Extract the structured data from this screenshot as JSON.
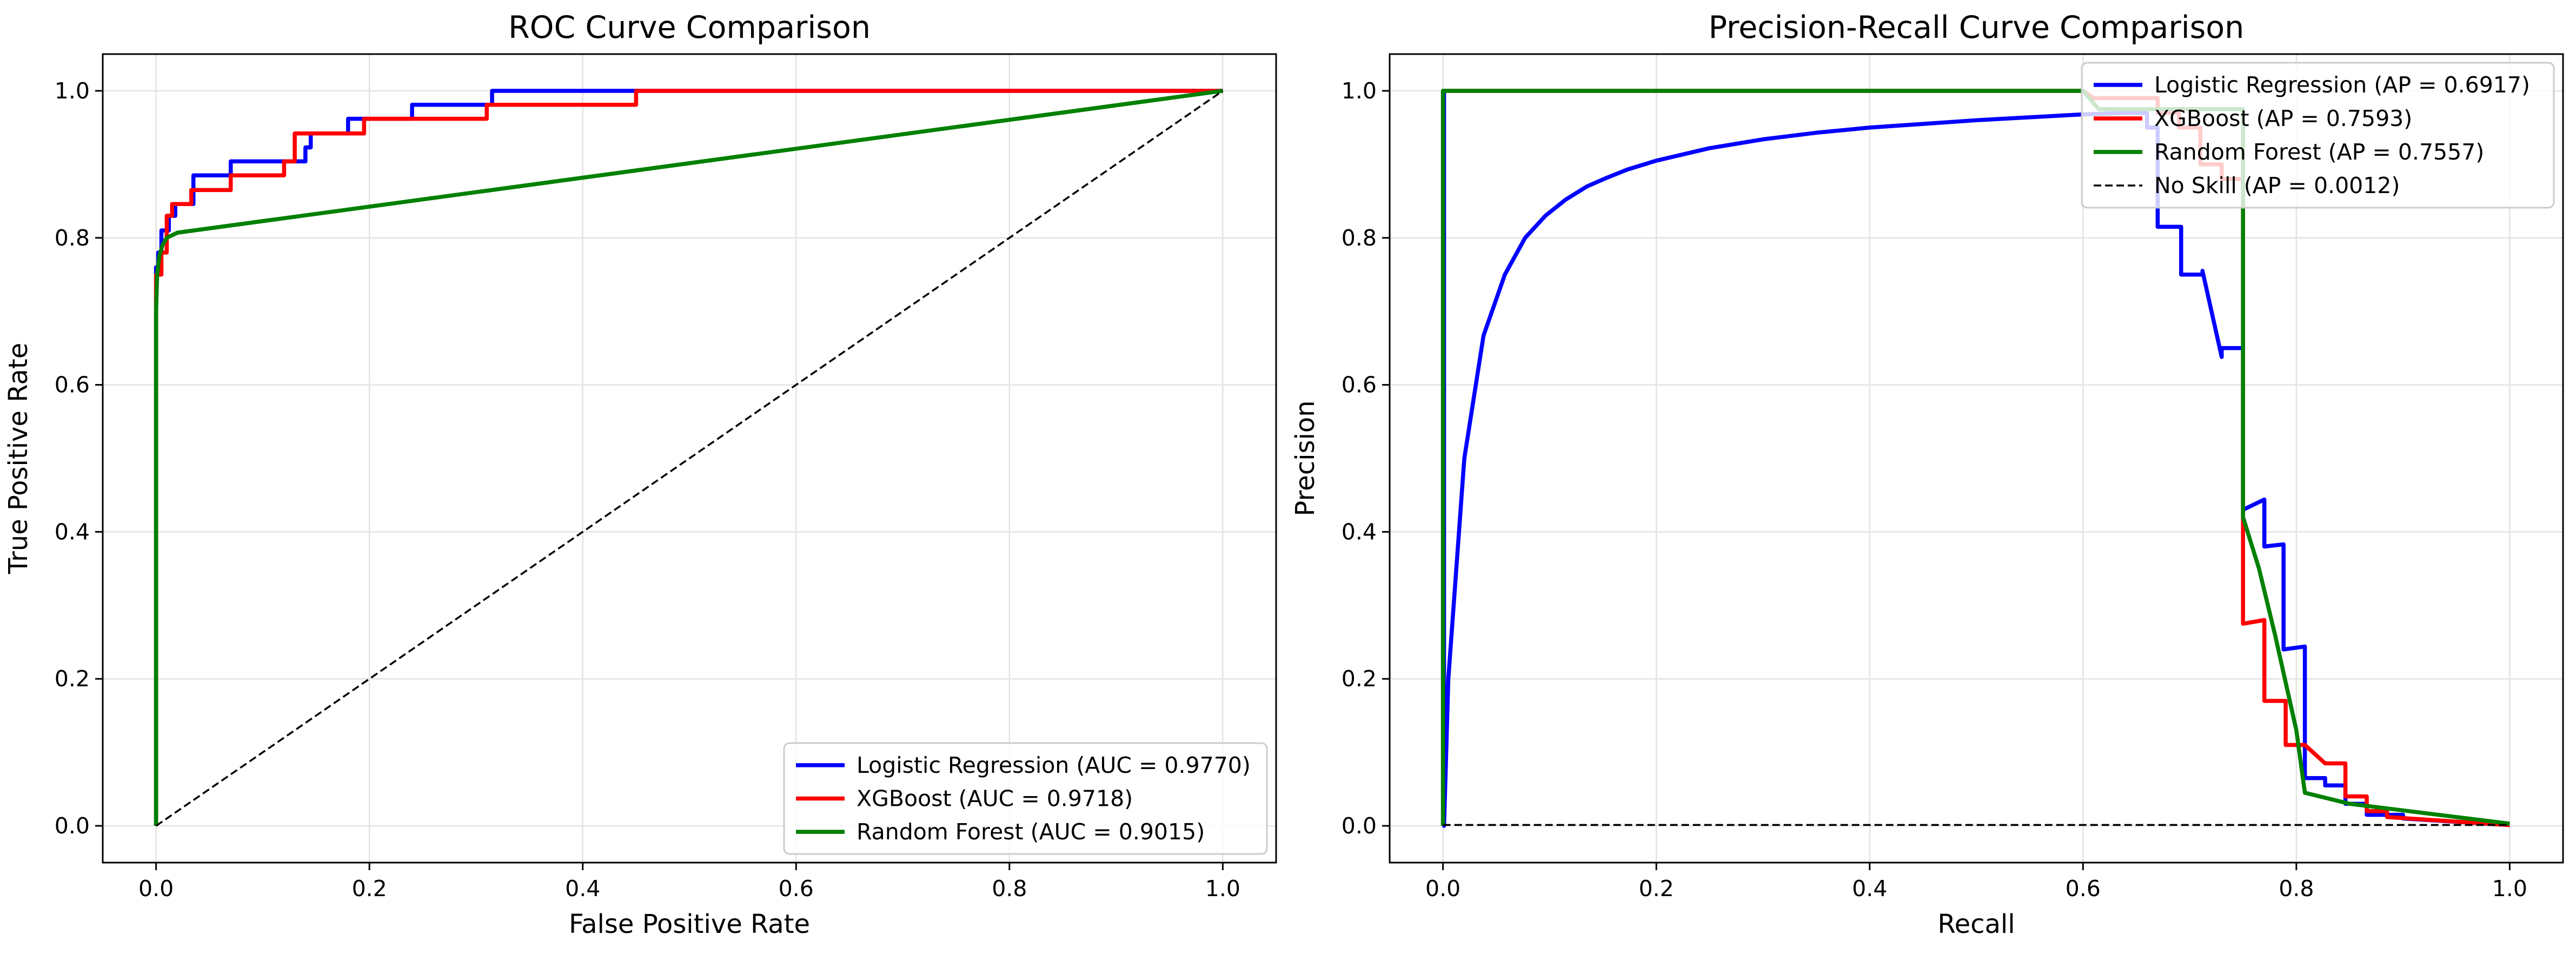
{
  "chart_data": [
    {
      "type": "line",
      "title": "ROC Curve Comparison",
      "xlabel": "False Positive Rate",
      "ylabel": "True Positive Rate",
      "xlim": [
        -0.05,
        1.05
      ],
      "ylim": [
        -0.05,
        1.05
      ],
      "xticks": [
        "0.0",
        "0.2",
        "0.4",
        "0.6",
        "0.8",
        "1.0"
      ],
      "yticks": [
        "0.0",
        "0.2",
        "0.4",
        "0.6",
        "0.8",
        "1.0"
      ],
      "grid": true,
      "legend_position": "lower-right",
      "series": [
        {
          "name": "Logistic Regression (AUC = 0.9770)",
          "color": "#0000ff",
          "dash": "solid",
          "x": [
            0,
            0,
            0.002,
            0.002,
            0.005,
            0.005,
            0.012,
            0.012,
            0.018,
            0.018,
            0.035,
            0.035,
            0.07,
            0.07,
            0.115,
            0.115,
            0.14,
            0.14,
            0.145,
            0.145,
            0.18,
            0.18,
            0.24,
            0.24,
            0.315,
            0.315,
            0.45,
            0.45,
            1.0
          ],
          "y": [
            0,
            0.76,
            0.76,
            0.78,
            0.78,
            0.81,
            0.81,
            0.83,
            0.83,
            0.846,
            0.846,
            0.885,
            0.885,
            0.904,
            0.904,
            0.904,
            0.904,
            0.923,
            0.923,
            0.942,
            0.942,
            0.962,
            0.962,
            0.981,
            0.981,
            1.0,
            1.0,
            1.0,
            1.0
          ]
        },
        {
          "name": "XGBoost (AUC = 0.9718)",
          "color": "#ff0000",
          "dash": "solid",
          "x": [
            0,
            0,
            0.005,
            0.005,
            0.01,
            0.01,
            0.015,
            0.015,
            0.033,
            0.033,
            0.07,
            0.07,
            0.12,
            0.12,
            0.13,
            0.13,
            0.195,
            0.195,
            0.31,
            0.31,
            0.45,
            0.45,
            1.0
          ],
          "y": [
            0,
            0.75,
            0.75,
            0.78,
            0.78,
            0.83,
            0.83,
            0.846,
            0.846,
            0.865,
            0.865,
            0.885,
            0.885,
            0.904,
            0.904,
            0.942,
            0.942,
            0.962,
            0.962,
            0.981,
            0.981,
            1.0,
            1.0
          ]
        },
        {
          "name": "Random Forest (AUC = 0.9015)",
          "color": "#008000",
          "dash": "solid",
          "x": [
            0,
            0,
            0.001,
            0.003,
            0.006,
            0.01,
            0.02,
            1.0
          ],
          "y": [
            0,
            0.7,
            0.75,
            0.775,
            0.79,
            0.8,
            0.807,
            1.0
          ]
        },
        {
          "name": "",
          "color": "#000000",
          "dash": "dashed",
          "x": [
            0,
            1
          ],
          "y": [
            0,
            1
          ]
        }
      ]
    },
    {
      "type": "line",
      "title": "Precision-Recall Curve Comparison",
      "xlabel": "Recall",
      "ylabel": "Precision",
      "xlim": [
        -0.05,
        1.05
      ],
      "ylim": [
        -0.05,
        1.05
      ],
      "xticks": [
        "0.0",
        "0.2",
        "0.4",
        "0.6",
        "0.8",
        "1.0"
      ],
      "yticks": [
        "0.0",
        "0.2",
        "0.4",
        "0.6",
        "0.8",
        "1.0"
      ],
      "grid": true,
      "legend_position": "upper-right",
      "series": [
        {
          "name": "Logistic Regression (AP = 0.6917)",
          "color": "#0000ff",
          "dash": "solid",
          "x": [
            0,
            0,
            0.001,
            0.001,
            0.005,
            0.01,
            0.02,
            0.038,
            0.058,
            0.077,
            0.096,
            0.115,
            0.135,
            0.154,
            0.173,
            0.2,
            0.25,
            0.3,
            0.35,
            0.4,
            0.45,
            0.5,
            0.55,
            0.6,
            0.64,
            0.66,
            0.66,
            0.67,
            0.67,
            0.692,
            0.692,
            0.712,
            0.712,
            0.73,
            0.73,
            0.75,
            0.75,
            0.77,
            0.77,
            0.788,
            0.788,
            0.808,
            0.808,
            0.827,
            0.827,
            0.846,
            0.846,
            0.866,
            0.866,
            0.9,
            0.9,
            1.0
          ],
          "y": [
            0,
            1.0,
            1.0,
            0,
            0.2,
            0.3,
            0.5,
            0.667,
            0.75,
            0.8,
            0.83,
            0.852,
            0.87,
            0.882,
            0.893,
            0.905,
            0.922,
            0.934,
            0.943,
            0.95,
            0.955,
            0.96,
            0.964,
            0.968,
            0.97,
            0.97,
            0.95,
            0.95,
            0.815,
            0.815,
            0.75,
            0.75,
            0.755,
            0.638,
            0.65,
            0.65,
            0.43,
            0.444,
            0.38,
            0.383,
            0.24,
            0.244,
            0.065,
            0.065,
            0.055,
            0.055,
            0.03,
            0.03,
            0.015,
            0.015,
            0.01,
            0.001
          ]
        },
        {
          "name": "XGBoost (AP = 0.7593)",
          "color": "#ff0000",
          "dash": "solid",
          "x": [
            0,
            0.6,
            0.61,
            0.67,
            0.67,
            0.69,
            0.69,
            0.71,
            0.71,
            0.73,
            0.73,
            0.75,
            0.75,
            0.77,
            0.77,
            0.79,
            0.79,
            0.808,
            0.808,
            0.827,
            0.827,
            0.846,
            0.846,
            0.866,
            0.866,
            0.885,
            0.885,
            1.0
          ],
          "y": [
            1.0,
            1.0,
            0.99,
            0.99,
            0.97,
            0.97,
            0.95,
            0.95,
            0.9,
            0.9,
            0.88,
            0.88,
            0.275,
            0.28,
            0.17,
            0.17,
            0.11,
            0.11,
            0.11,
            0.085,
            0.085,
            0.085,
            0.04,
            0.04,
            0.02,
            0.02,
            0.012,
            0.001
          ]
        },
        {
          "name": "Random Forest (AP = 0.7557)",
          "color": "#008000",
          "dash": "solid",
          "x": [
            0,
            0,
            0.6,
            0.615,
            0.75,
            0.75,
            0.765,
            0.78,
            0.8,
            0.808,
            0.85,
            1.0
          ],
          "y": [
            0,
            1.0,
            1.0,
            0.975,
            0.975,
            0.42,
            0.35,
            0.26,
            0.13,
            0.045,
            0.03,
            0.003
          ]
        },
        {
          "name": "No Skill (AP = 0.0012)",
          "color": "#000000",
          "dash": "dashed",
          "x": [
            0,
            1
          ],
          "y": [
            0.0012,
            0.0012
          ]
        }
      ]
    }
  ]
}
